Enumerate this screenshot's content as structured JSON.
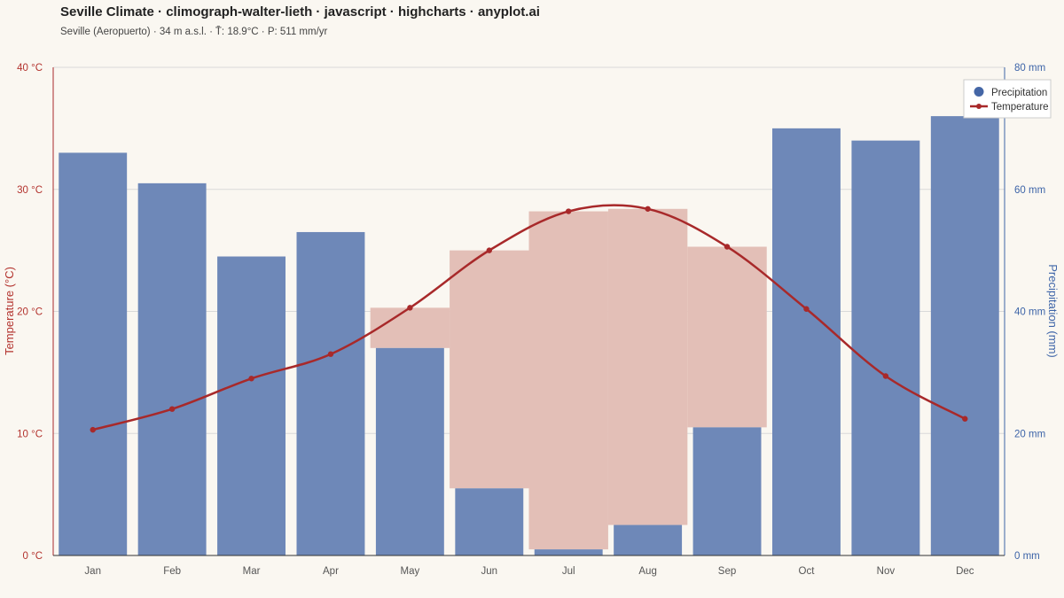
{
  "title": "Seville Climate · climograph-walter-lieth · javascript · highcharts · anyplot.ai",
  "subtitle": "Seville (Aeropuerto) · 34 m a.s.l. · T̄: 18.9°C · P: 511 mm/yr",
  "colors": {
    "temperature": "#a8292a",
    "precipitation": "#6e88b8",
    "humid_base": "#dadde3",
    "arid_fill": "#e3bfb7",
    "grid": "#d9d9d9",
    "background": "#faf7f1"
  },
  "chart_data": {
    "type": "bar",
    "categories": [
      "Jan",
      "Feb",
      "Mar",
      "Apr",
      "May",
      "Jun",
      "Jul",
      "Aug",
      "Sep",
      "Oct",
      "Nov",
      "Dec"
    ],
    "series": [
      {
        "name": "Precipitation",
        "type": "bar",
        "axis": "right",
        "unit": "mm",
        "values": [
          66,
          61,
          49,
          53,
          34,
          11,
          1,
          5,
          21,
          70,
          68,
          72
        ]
      },
      {
        "name": "Temperature",
        "type": "line",
        "axis": "left",
        "unit": "°C",
        "values": [
          10.3,
          12.0,
          14.5,
          16.5,
          20.3,
          25.0,
          28.2,
          28.4,
          25.3,
          20.2,
          14.7,
          11.2
        ]
      }
    ],
    "y_left": {
      "label": "Temperature (°C)",
      "range": [
        0,
        40
      ],
      "ticks": [
        "0 °C",
        "10 °C",
        "20 °C",
        "30 °C",
        "40 °C"
      ]
    },
    "y_right": {
      "label": "Precipitation (mm)",
      "range": [
        0,
        80
      ],
      "ticks": [
        "0 mm",
        "20 mm",
        "40 mm",
        "60 mm",
        "80 mm"
      ]
    },
    "grid": true,
    "legend": {
      "position": "top-right",
      "entries": [
        "Precipitation",
        "Temperature"
      ]
    }
  }
}
